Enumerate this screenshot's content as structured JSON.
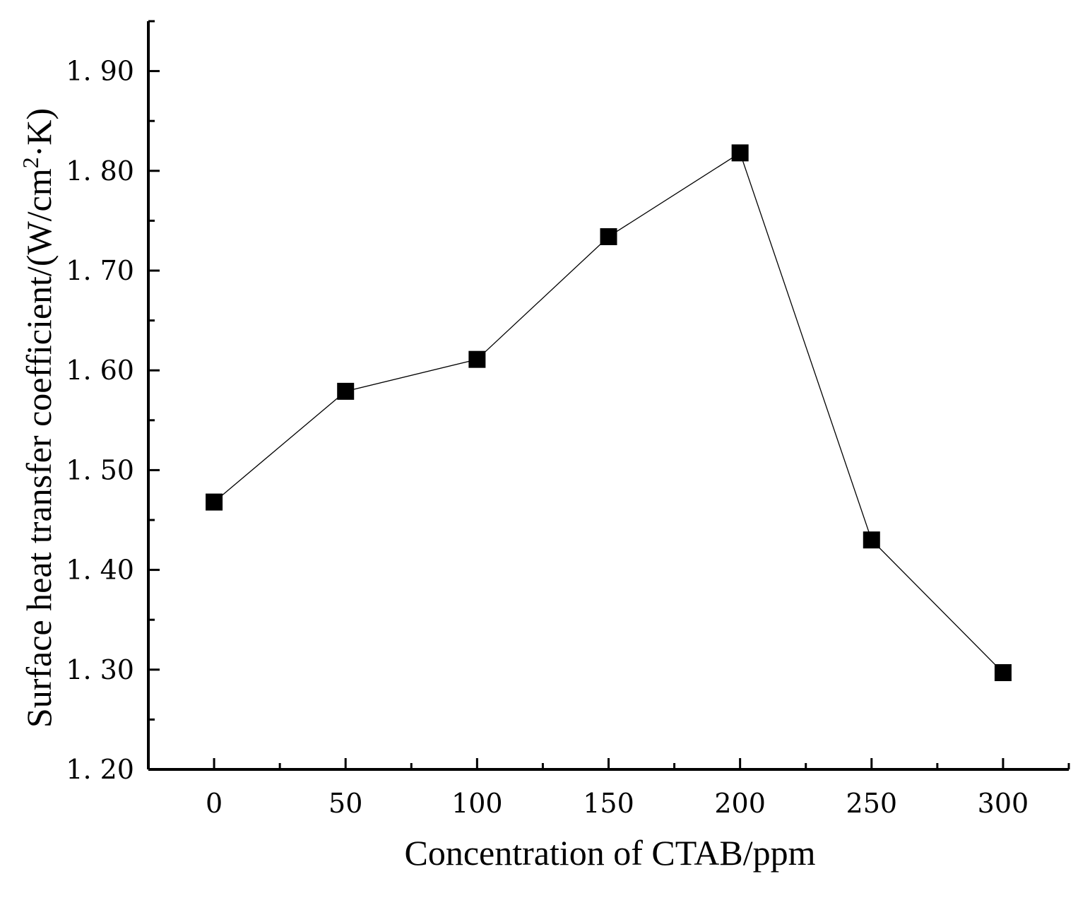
{
  "chart_data": {
    "type": "line",
    "title": "",
    "xlabel": "Concentration of  CTAB/ppm",
    "ylabel_main": "Surface heat transfer coefficient/(W/cm",
    "ylabel_sup": "2",
    "ylabel_tail": "·K)",
    "x_ticks": [
      "0",
      "50",
      "100",
      "150",
      "200",
      "250",
      "300"
    ],
    "y_ticks": [
      "1. 20",
      "1. 30",
      "1. 40",
      "1. 50",
      "1. 60",
      "1. 70",
      "1. 80",
      "1. 90"
    ],
    "xlim": [
      -25,
      325
    ],
    "ylim": [
      1.2,
      1.95
    ],
    "grid": false,
    "series": [
      {
        "name": "Surface heat transfer coefficient",
        "marker": "square",
        "x": [
          0,
          50,
          100,
          150,
          200,
          250,
          300
        ],
        "y": [
          1.468,
          1.579,
          1.611,
          1.734,
          1.818,
          1.43,
          1.297
        ]
      }
    ],
    "colors": {
      "line": "#000000",
      "marker": "#000000",
      "axis": "#000000"
    }
  }
}
